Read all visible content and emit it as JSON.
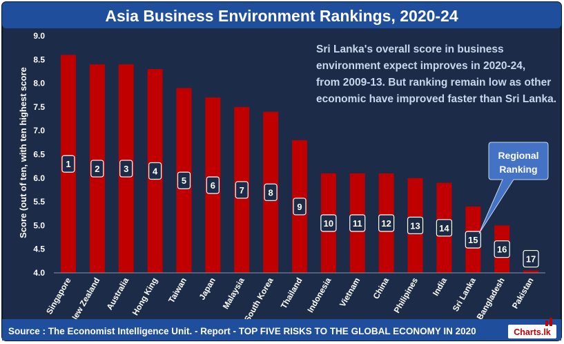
{
  "colors": {
    "background": "#1c2b47",
    "bar": "#c00000",
    "title_band": "#1f4e9c",
    "text_light": "#c9d7ee",
    "tick_text": "#ffffff",
    "callout": "#4472c4",
    "source_text": "#ffffff"
  },
  "header": {
    "title": "Asia Business Environment Rankings, 2020-24"
  },
  "annotation": {
    "lines": [
      "Sri Lanka's overall score in business",
      "environment expect improves in 2020-24,",
      "from 2009-13. But ranking remain low as other",
      "economic have improved faster than Sri Lanka."
    ]
  },
  "callout": {
    "lines": [
      "Regional",
      "Ranking"
    ]
  },
  "footer": {
    "source": "Source : The Economist Intelligence Unit. - Report - TOP FIVE RISKS TO THE GLOBAL ECONOMY IN 2020",
    "logo": "Charts.lk"
  },
  "chart_data": {
    "type": "bar",
    "title": "Asia Business Environment Rankings, 2020-24",
    "xlabel": "",
    "ylabel": "Score (out of ten, with ten highest score",
    "ylim": [
      4.0,
      9.0
    ],
    "yticks": [
      "4.0",
      "4.5",
      "5.0",
      "5.5",
      "6.0",
      "6.5",
      "7.0",
      "7.5",
      "8.0",
      "8.5",
      "9.0"
    ],
    "grid": false,
    "categories": [
      "Singapore",
      "New Zealand",
      "Australia",
      "Hong King",
      "Taiwan",
      "Japan",
      "Malaysia",
      "South Korea",
      "Thailand",
      "Indonesia",
      "Vietnam",
      "China",
      "Philipines",
      "India",
      "Sri Lanka",
      "Bangladesh",
      "Pakistan"
    ],
    "values": [
      8.6,
      8.4,
      8.4,
      8.3,
      7.9,
      7.7,
      7.5,
      7.4,
      6.8,
      6.1,
      6.1,
      6.1,
      6.0,
      5.9,
      5.4,
      5.0,
      4.05
    ],
    "ranks": [
      "1",
      "2",
      "3",
      "4",
      "5",
      "6",
      "7",
      "8",
      "9",
      "10",
      "11",
      "12",
      "13",
      "14",
      "15",
      "16",
      "17"
    ]
  }
}
